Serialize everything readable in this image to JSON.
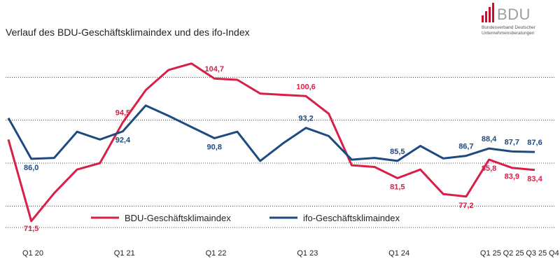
{
  "page": {
    "title": "Verlauf des BDU-Geschäftsklimaindex und des ifo-Index"
  },
  "logo": {
    "name": "BDU",
    "subtitle_line1": "Bundesverband Deutscher",
    "subtitle_line2": "Unternehmensberatungen",
    "color": "#c8102e"
  },
  "chart_data": {
    "type": "line",
    "title": "Verlauf des BDU-Geschäftsklimaindex und des ifo-Index",
    "xlabel": "",
    "ylabel": "",
    "ylim": [
      70,
      115
    ],
    "grid": true,
    "legend_position": "lower-center",
    "x_tick_labels": [
      "Q1 20",
      "Q1 21",
      "Q1 22",
      "Q1 23",
      "Q1 24",
      "Q1 25",
      "Q2 25",
      "Q3 25",
      "Q4 25"
    ],
    "series": [
      {
        "name": "BDU-Geschäftsklimaindex",
        "color": "#d81f48",
        "values": [
          90.5,
          71.5,
          78.0,
          83.5,
          85.0,
          94.5,
          102.0,
          106.7,
          108.2,
          104.7,
          104.4,
          101.2,
          100.9,
          100.6,
          96.5,
          84.5,
          84.1,
          81.5,
          83.5,
          77.8,
          77.2,
          85.8,
          83.9,
          83.4
        ],
        "labels": [
          {
            "index": 1,
            "text": "71,5"
          },
          {
            "index": 5,
            "text": "94,5"
          },
          {
            "index": 9,
            "text": "104,7"
          },
          {
            "index": 13,
            "text": "100,6"
          },
          {
            "index": 17,
            "text": "81,5"
          },
          {
            "index": 20,
            "text": "77,2"
          },
          {
            "index": 21,
            "text": "85,8"
          },
          {
            "index": 22,
            "text": "83,9"
          },
          {
            "index": 23,
            "text": "83,4"
          }
        ]
      },
      {
        "name": "ifo-Geschäftsklimaindex",
        "color": "#1e4a82",
        "values": [
          95.5,
          86.0,
          86.2,
          92.3,
          90.5,
          92.4,
          98.4,
          96.0,
          93.4,
          90.8,
          92.3,
          85.5,
          89.6,
          93.2,
          91.3,
          85.8,
          86.2,
          85.5,
          89.0,
          86.1,
          86.7,
          88.4,
          87.7,
          87.6
        ],
        "labels": [
          {
            "index": 1,
            "text": "86,0"
          },
          {
            "index": 5,
            "text": "92,4"
          },
          {
            "index": 9,
            "text": "90,8"
          },
          {
            "index": 13,
            "text": "93,2"
          },
          {
            "index": 17,
            "text": "85,5"
          },
          {
            "index": 20,
            "text": "86,7"
          },
          {
            "index": 21,
            "text": "88,4"
          },
          {
            "index": 22,
            "text": "87,7"
          },
          {
            "index": 23,
            "text": "87,6"
          }
        ]
      }
    ]
  }
}
